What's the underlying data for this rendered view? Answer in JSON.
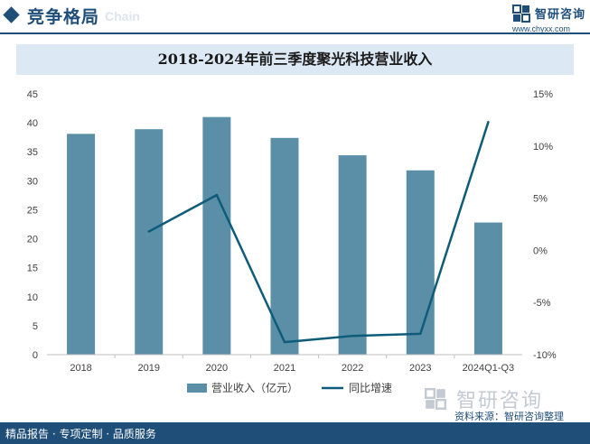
{
  "header": {
    "title": "竞争格局",
    "subtitle": "Chain",
    "logo_name": "智研咨询",
    "logo_url": "www.chyxx.com"
  },
  "chart_data": {
    "type": "bar",
    "title": "2018-2024年前三季度聚光科技营业收入",
    "categories": [
      "2018",
      "2019",
      "2020",
      "2021",
      "2022",
      "2023",
      "2024Q1-Q3"
    ],
    "series": [
      {
        "name": "营业收入（亿元）",
        "type": "bar",
        "axis": "left",
        "color": "#5b8fa8",
        "values": [
          38.1,
          38.9,
          41.0,
          37.4,
          34.4,
          31.8,
          22.8
        ]
      },
      {
        "name": "同比增速",
        "type": "line",
        "axis": "right",
        "color": "#0e5c7a",
        "values": [
          null,
          1.8,
          5.3,
          -8.8,
          -8.2,
          -8.0,
          12.3
        ]
      }
    ],
    "yleft": {
      "min": 0,
      "max": 45,
      "ticks": [
        "0",
        "5",
        "10",
        "15",
        "20",
        "25",
        "30",
        "35",
        "40",
        "45"
      ]
    },
    "yright": {
      "min": -10,
      "max": 15,
      "ticks": [
        "-10%",
        "-5%",
        "0%",
        "5%",
        "10%",
        "15%"
      ]
    },
    "grid": false,
    "legend_position": "bottom"
  },
  "footer": {
    "text": "精品报告 · 专项定制 · 品质服务",
    "source": "资料来源：智研咨询整理",
    "watermark": "智研咨询"
  }
}
